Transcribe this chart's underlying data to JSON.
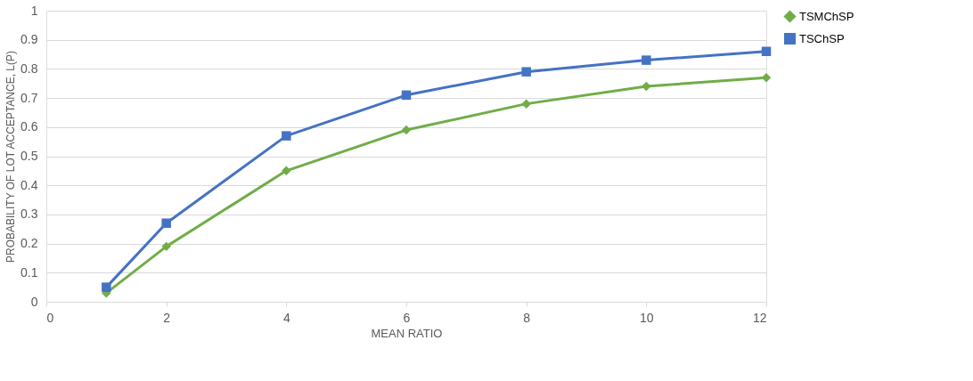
{
  "chart_data": {
    "type": "line",
    "xlabel": "MEAN RATIO",
    "ylabel": "PROBABILITY OF LOT ACCEPTANCE, L(P)",
    "x": [
      1,
      2,
      4,
      6,
      8,
      10,
      12
    ],
    "series": [
      {
        "name": "TSMChSP",
        "color": "#70ad47",
        "marker": "diamond",
        "values": [
          0.03,
          0.19,
          0.45,
          0.59,
          0.68,
          0.74,
          0.77
        ]
      },
      {
        "name": "TSChSP",
        "color": "#4472c4",
        "marker": "square",
        "values": [
          0.05,
          0.27,
          0.57,
          0.71,
          0.79,
          0.83,
          0.86
        ]
      }
    ],
    "xlim": [
      0,
      12
    ],
    "xticks": [
      0,
      2,
      4,
      6,
      8,
      10,
      12
    ],
    "ylim": [
      0,
      1
    ],
    "yticks": [
      0,
      0.1,
      0.2,
      0.3,
      0.4,
      0.5,
      0.6,
      0.7,
      0.8,
      0.9,
      1
    ],
    "grid": "y",
    "legend": "right",
    "line_style": "solid"
  }
}
